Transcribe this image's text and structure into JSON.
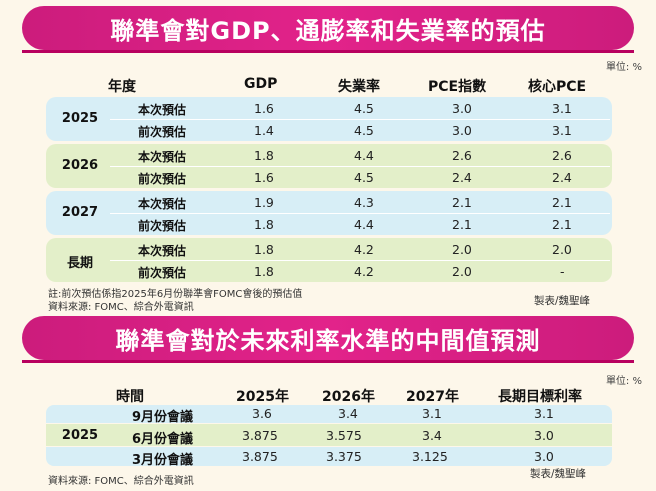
{
  "table1": {
    "title": "聯準會對GDP、通膨率和失業率的預估",
    "unit": "單位: %",
    "headers": [
      "年度",
      "GDP",
      "失業率",
      "PCE指數",
      "核心PCE"
    ],
    "groups": [
      {
        "year": "2025",
        "rows": [
          {
            "label": "本次預估",
            "gdp": "1.6",
            "unemp": "4.5",
            "pce": "3.0",
            "core": "3.1"
          },
          {
            "label": "前次預估",
            "gdp": "1.4",
            "unemp": "4.5",
            "pce": "3.0",
            "core": "3.1"
          }
        ]
      },
      {
        "year": "2026",
        "rows": [
          {
            "label": "本次預估",
            "gdp": "1.8",
            "unemp": "4.4",
            "pce": "2.6",
            "core": "2.6"
          },
          {
            "label": "前次預估",
            "gdp": "1.6",
            "unemp": "4.5",
            "pce": "2.4",
            "core": "2.4"
          }
        ]
      },
      {
        "year": "2027",
        "rows": [
          {
            "label": "本次預估",
            "gdp": "1.9",
            "unemp": "4.3",
            "pce": "2.1",
            "core": "2.1"
          },
          {
            "label": "前次預估",
            "gdp": "1.8",
            "unemp": "4.4",
            "pce": "2.1",
            "core": "2.1"
          }
        ]
      },
      {
        "year": "長期",
        "rows": [
          {
            "label": "本次預估",
            "gdp": "1.8",
            "unemp": "4.2",
            "pce": "2.0",
            "core": "2.0"
          },
          {
            "label": "前次預估",
            "gdp": "1.8",
            "unemp": "4.2",
            "pce": "2.0",
            "core": "-"
          }
        ]
      }
    ],
    "note1": "註:前次預估係指2025年6月份聯準會FOMC會後的預估值",
    "note2": "資料來源: FOMC、綜合外電資訊",
    "credit": "製表/魏聖峰"
  },
  "table2": {
    "title": "聯準會對於未來利率水準的中間值預測",
    "unit": "單位: %",
    "headers": [
      "時間",
      "2025年",
      "2026年",
      "2027年",
      "長期目標利率"
    ],
    "year": "2025",
    "rows": [
      {
        "label": "9月份會議",
        "y2025": "3.6",
        "y2026": "3.4",
        "y2027": "3.1",
        "long": "3.1"
      },
      {
        "label": "6月份會議",
        "y2025": "3.875",
        "y2026": "3.575",
        "y2027": "3.4",
        "long": "3.0"
      },
      {
        "label": "3月份會議",
        "y2025": "3.875",
        "y2026": "3.375",
        "y2027": "3.125",
        "long": "3.0"
      }
    ],
    "source": "資料來源: FOMC、綜合外電資訊",
    "credit": "製表/魏聖峰"
  },
  "colors": {
    "title_bg": "#e2238a",
    "blue_band": "#d7eef6",
    "green_band": "#e3efc9",
    "page_bg": "#fdf7ea"
  }
}
